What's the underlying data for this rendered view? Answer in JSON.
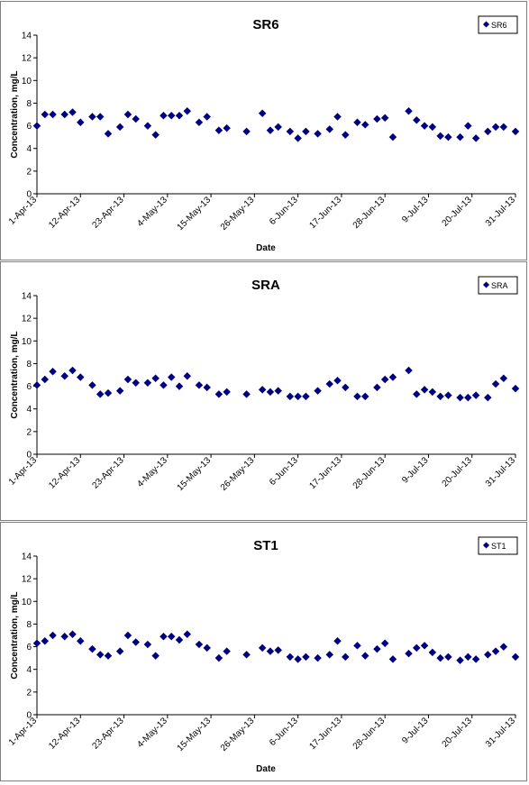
{
  "chart_data": [
    {
      "type": "scatter",
      "title": "SR6",
      "xlabel": "Date",
      "ylabel": "Concentration, mg/L",
      "ylim": [
        0,
        14
      ],
      "yticks": [
        0,
        2,
        4,
        6,
        8,
        10,
        12,
        14
      ],
      "xlim": [
        "2013-04-01",
        "2013-07-31"
      ],
      "xticks": [
        "1-Apr-13",
        "12-Apr-13",
        "23-Apr-13",
        "4-May-13",
        "15-May-13",
        "26-May-13",
        "6-Jun-13",
        "17-Jun-13",
        "28-Jun-13",
        "9-Jul-13",
        "20-Jul-13",
        "31-Jul-13"
      ],
      "legend": "top-right",
      "grid": false,
      "marker_color": "#000080",
      "series": [
        {
          "name": "SR6",
          "x": [
            "2013-04-01",
            "2013-04-03",
            "2013-04-05",
            "2013-04-08",
            "2013-04-10",
            "2013-04-12",
            "2013-04-15",
            "2013-04-17",
            "2013-04-19",
            "2013-04-22",
            "2013-04-24",
            "2013-04-26",
            "2013-04-29",
            "2013-05-01",
            "2013-05-03",
            "2013-05-05",
            "2013-05-07",
            "2013-05-09",
            "2013-05-12",
            "2013-05-14",
            "2013-05-17",
            "2013-05-19",
            "2013-05-24",
            "2013-05-28",
            "2013-05-30",
            "2013-06-01",
            "2013-06-04",
            "2013-06-06",
            "2013-06-08",
            "2013-06-11",
            "2013-06-14",
            "2013-06-16",
            "2013-06-18",
            "2013-06-21",
            "2013-06-23",
            "2013-06-26",
            "2013-06-28",
            "2013-06-30",
            "2013-07-04",
            "2013-07-06",
            "2013-07-08",
            "2013-07-10",
            "2013-07-12",
            "2013-07-14",
            "2013-07-17",
            "2013-07-19",
            "2013-07-21",
            "2013-07-24",
            "2013-07-26",
            "2013-07-28",
            "2013-07-31"
          ],
          "y": [
            6.0,
            7.0,
            7.0,
            7.0,
            7.2,
            6.3,
            6.8,
            6.8,
            5.3,
            5.9,
            7.0,
            6.6,
            6.0,
            5.2,
            6.9,
            6.9,
            6.9,
            7.3,
            6.3,
            6.8,
            5.6,
            5.8,
            5.5,
            7.1,
            5.6,
            5.9,
            5.5,
            4.9,
            5.5,
            5.3,
            5.7,
            6.8,
            5.2,
            6.3,
            6.1,
            6.6,
            6.7,
            5.0,
            7.3,
            6.5,
            6.0,
            5.9,
            5.1,
            5.0,
            5.0,
            6.0,
            4.9,
            5.5,
            5.9,
            5.9,
            5.5
          ]
        }
      ]
    },
    {
      "type": "scatter",
      "title": "SRA",
      "xlabel": "",
      "ylabel": "Concentration, mg/L",
      "ylim": [
        0,
        14
      ],
      "yticks": [
        0,
        2,
        4,
        6,
        8,
        10,
        12,
        14
      ],
      "xlim": [
        "2013-04-01",
        "2013-07-31"
      ],
      "xticks": [
        "1-Apr-13",
        "12-Apr-13",
        "23-Apr-13",
        "4-May-13",
        "15-May-13",
        "26-May-13",
        "6-Jun-13",
        "17-Jun-13",
        "28-Jun-13",
        "9-Jul-13",
        "20-Jul-13",
        "31-Jul-13"
      ],
      "legend": "top-right",
      "grid": false,
      "marker_color": "#000080",
      "series": [
        {
          "name": "SRA",
          "x": [
            "2013-04-01",
            "2013-04-03",
            "2013-04-05",
            "2013-04-08",
            "2013-04-10",
            "2013-04-12",
            "2013-04-15",
            "2013-04-17",
            "2013-04-19",
            "2013-04-22",
            "2013-04-24",
            "2013-04-26",
            "2013-04-29",
            "2013-05-01",
            "2013-05-03",
            "2013-05-05",
            "2013-05-07",
            "2013-05-09",
            "2013-05-12",
            "2013-05-14",
            "2013-05-17",
            "2013-05-19",
            "2013-05-24",
            "2013-05-28",
            "2013-05-30",
            "2013-06-01",
            "2013-06-04",
            "2013-06-06",
            "2013-06-08",
            "2013-06-11",
            "2013-06-14",
            "2013-06-16",
            "2013-06-18",
            "2013-06-21",
            "2013-06-23",
            "2013-06-26",
            "2013-06-28",
            "2013-06-30",
            "2013-07-04",
            "2013-07-06",
            "2013-07-08",
            "2013-07-10",
            "2013-07-12",
            "2013-07-14",
            "2013-07-17",
            "2013-07-19",
            "2013-07-21",
            "2013-07-24",
            "2013-07-26",
            "2013-07-28",
            "2013-07-31"
          ],
          "y": [
            6.1,
            6.6,
            7.3,
            6.9,
            7.4,
            6.8,
            6.1,
            5.3,
            5.4,
            5.6,
            6.6,
            6.3,
            6.3,
            6.7,
            6.1,
            6.8,
            6.0,
            6.9,
            6.1,
            5.9,
            5.3,
            5.5,
            5.3,
            5.7,
            5.5,
            5.6,
            5.1,
            5.1,
            5.1,
            5.6,
            6.2,
            6.5,
            5.9,
            5.1,
            5.1,
            5.9,
            6.6,
            6.8,
            7.4,
            5.3,
            5.7,
            5.5,
            5.1,
            5.2,
            5.0,
            5.0,
            5.2,
            5.0,
            6.2,
            6.7,
            5.8
          ]
        }
      ]
    },
    {
      "type": "scatter",
      "title": "ST1",
      "xlabel": "Date",
      "ylabel": "Concentration, mg/L",
      "ylim": [
        0,
        14
      ],
      "yticks": [
        0,
        2,
        4,
        6,
        8,
        10,
        12,
        14
      ],
      "xlim": [
        "2013-04-01",
        "2013-07-31"
      ],
      "xticks": [
        "1-Apr-13",
        "12-Apr-13",
        "23-Apr-13",
        "4-May-13",
        "15-May-13",
        "26-May-13",
        "6-Jun-13",
        "17-Jun-13",
        "28-Jun-13",
        "9-Jul-13",
        "20-Jul-13",
        "31-Jul-13"
      ],
      "legend": "top-right",
      "grid": false,
      "marker_color": "#000080",
      "series": [
        {
          "name": "ST1",
          "x": [
            "2013-04-01",
            "2013-04-03",
            "2013-04-05",
            "2013-04-08",
            "2013-04-10",
            "2013-04-12",
            "2013-04-15",
            "2013-04-17",
            "2013-04-19",
            "2013-04-22",
            "2013-04-24",
            "2013-04-26",
            "2013-04-29",
            "2013-05-01",
            "2013-05-03",
            "2013-05-05",
            "2013-05-07",
            "2013-05-09",
            "2013-05-12",
            "2013-05-14",
            "2013-05-17",
            "2013-05-19",
            "2013-05-24",
            "2013-05-28",
            "2013-05-30",
            "2013-06-01",
            "2013-06-04",
            "2013-06-06",
            "2013-06-08",
            "2013-06-11",
            "2013-06-14",
            "2013-06-16",
            "2013-06-18",
            "2013-06-21",
            "2013-06-23",
            "2013-06-26",
            "2013-06-28",
            "2013-06-30",
            "2013-07-04",
            "2013-07-06",
            "2013-07-08",
            "2013-07-10",
            "2013-07-12",
            "2013-07-14",
            "2013-07-17",
            "2013-07-19",
            "2013-07-21",
            "2013-07-24",
            "2013-07-26",
            "2013-07-28",
            "2013-07-31"
          ],
          "y": [
            6.3,
            6.5,
            7.0,
            6.9,
            7.1,
            6.5,
            5.8,
            5.3,
            5.2,
            5.6,
            7.0,
            6.4,
            6.2,
            5.2,
            6.9,
            6.9,
            6.6,
            7.1,
            6.2,
            5.9,
            5.0,
            5.6,
            5.3,
            5.9,
            5.6,
            5.7,
            5.1,
            4.9,
            5.1,
            5.0,
            5.3,
            6.5,
            5.1,
            6.1,
            5.2,
            5.8,
            6.3,
            4.9,
            5.4,
            5.9,
            6.1,
            5.5,
            5.0,
            5.1,
            4.8,
            5.1,
            4.9,
            5.3,
            5.6,
            6.0,
            5.1
          ]
        }
      ]
    }
  ]
}
